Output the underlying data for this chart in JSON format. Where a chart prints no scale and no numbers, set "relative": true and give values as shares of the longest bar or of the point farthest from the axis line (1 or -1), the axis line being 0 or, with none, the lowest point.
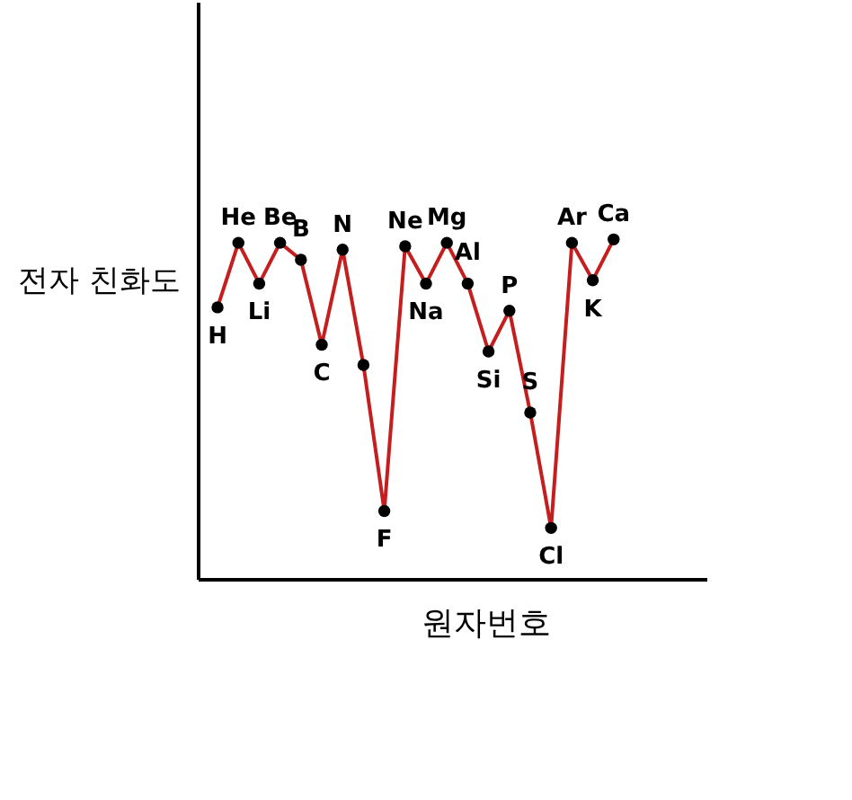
{
  "chart_data": {
    "type": "line",
    "xlabel": "원자번호",
    "ylabel": "전자 친화도",
    "relative": true,
    "marker": "circle",
    "categories": [
      "H",
      "He",
      "Li",
      "Be",
      "B",
      "C",
      "N",
      null,
      "F",
      "Ne",
      "Na",
      "Mg",
      "Al",
      "Si",
      "P",
      "S",
      "Cl",
      "Ar",
      "K",
      "Ca"
    ],
    "series": [
      {
        "color": "#c41e1e",
        "values": [
          0.8,
          0.99,
          0.87,
          0.99,
          0.94,
          0.69,
          0.97,
          0.63,
          0.2,
          0.98,
          0.87,
          0.99,
          0.87,
          0.67,
          0.79,
          0.49,
          0.15,
          0.99,
          0.88,
          1.0
        ]
      }
    ]
  }
}
